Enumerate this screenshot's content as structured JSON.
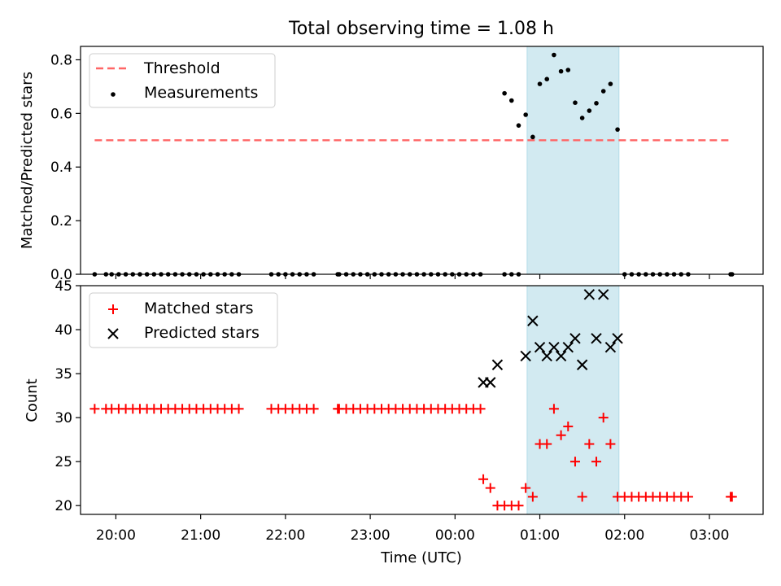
{
  "figure": {
    "title": "Total observing time = 1.08 h"
  },
  "chart_data": [
    {
      "type": "scatter",
      "panel": "top",
      "xlabel": "",
      "ylabel": "Matched/Predicted stars",
      "xlim": [
        "19:35",
        "03:38"
      ],
      "ylim": [
        0,
        0.85
      ],
      "yticks": [
        0.0,
        0.2,
        0.4,
        0.6,
        0.8
      ],
      "ytick_labels": [
        "0.0",
        "0.2",
        "0.4",
        "0.6",
        "0.8"
      ],
      "shaded_interval": {
        "start": "00:51",
        "end": "01:56",
        "color": "#add8e6"
      },
      "legend_position": "upper-left",
      "threshold": {
        "name": "Threshold",
        "value": 0.5,
        "x_start": "19:45",
        "x_end": "03:15",
        "color": "#ff6666",
        "style": "dashed"
      },
      "series": [
        {
          "name": "Measurements",
          "color": "#000000",
          "marker": "dot",
          "points": [
            [
              "19:45",
              0
            ],
            [
              "19:53",
              0
            ],
            [
              "19:57",
              0
            ],
            [
              "20:02",
              0
            ],
            [
              "20:07",
              0
            ],
            [
              "20:12",
              0
            ],
            [
              "20:17",
              0
            ],
            [
              "20:22",
              0
            ],
            [
              "20:27",
              0
            ],
            [
              "20:32",
              0
            ],
            [
              "20:37",
              0
            ],
            [
              "20:42",
              0
            ],
            [
              "20:47",
              0
            ],
            [
              "20:52",
              0
            ],
            [
              "20:57",
              0
            ],
            [
              "21:02",
              0
            ],
            [
              "21:07",
              0
            ],
            [
              "21:12",
              0
            ],
            [
              "21:17",
              0
            ],
            [
              "21:22",
              0
            ],
            [
              "21:27",
              0
            ],
            [
              "21:50",
              0
            ],
            [
              "21:55",
              0
            ],
            [
              "22:00",
              0
            ],
            [
              "22:05",
              0
            ],
            [
              "22:10",
              0
            ],
            [
              "22:15",
              0
            ],
            [
              "22:20",
              0
            ],
            [
              "22:37",
              0
            ],
            [
              "22:38",
              0
            ],
            [
              "22:43",
              0
            ],
            [
              "22:48",
              0
            ],
            [
              "22:53",
              0
            ],
            [
              "22:58",
              0
            ],
            [
              "23:03",
              0
            ],
            [
              "23:08",
              0
            ],
            [
              "23:13",
              0
            ],
            [
              "23:18",
              0
            ],
            [
              "23:23",
              0
            ],
            [
              "23:28",
              0
            ],
            [
              "23:33",
              0
            ],
            [
              "23:38",
              0
            ],
            [
              "23:43",
              0
            ],
            [
              "23:48",
              0
            ],
            [
              "23:53",
              0
            ],
            [
              "23:58",
              0
            ],
            [
              "00:03",
              0
            ],
            [
              "00:08",
              0
            ],
            [
              "00:13",
              0
            ],
            [
              "00:18",
              0
            ],
            [
              "00:35",
              0.675
            ],
            [
              "00:40",
              0.648
            ],
            [
              "00:45",
              0.555
            ],
            [
              "00:35",
              0
            ],
            [
              "00:40",
              0
            ],
            [
              "00:45",
              0
            ],
            [
              "00:50",
              0.595
            ],
            [
              "00:55",
              0.512
            ],
            [
              "01:00",
              0.71
            ],
            [
              "01:05",
              0.728
            ],
            [
              "01:10",
              0.818
            ],
            [
              "01:15",
              0.757
            ],
            [
              "01:20",
              0.762
            ],
            [
              "01:25",
              0.64
            ],
            [
              "01:30",
              0.583
            ],
            [
              "01:35",
              0.61
            ],
            [
              "01:40",
              0.638
            ],
            [
              "01:45",
              0.683
            ],
            [
              "01:50",
              0.71
            ],
            [
              "01:55",
              0.54
            ],
            [
              "02:00",
              0
            ],
            [
              "02:05",
              0
            ],
            [
              "02:10",
              0
            ],
            [
              "02:15",
              0
            ],
            [
              "02:20",
              0
            ],
            [
              "02:25",
              0
            ],
            [
              "02:30",
              0
            ],
            [
              "02:35",
              0
            ],
            [
              "02:40",
              0
            ],
            [
              "02:45",
              0
            ],
            [
              "03:15",
              0
            ],
            [
              "03:16",
              0
            ]
          ]
        }
      ]
    },
    {
      "type": "scatter",
      "panel": "bottom",
      "xlabel": "Time (UTC)",
      "ylabel": "Count",
      "xlim": [
        "19:35",
        "03:38"
      ],
      "ylim": [
        19,
        45
      ],
      "yticks": [
        20,
        25,
        30,
        35,
        40,
        45
      ],
      "ytick_labels": [
        "20",
        "25",
        "30",
        "35",
        "40",
        "45"
      ],
      "xticks": [
        "20:00",
        "21:00",
        "22:00",
        "23:00",
        "00:00",
        "01:00",
        "02:00",
        "03:00"
      ],
      "xtick_labels": [
        "20:00",
        "21:00",
        "22:00",
        "23:00",
        "00:00",
        "01:00",
        "02:00",
        "03:00"
      ],
      "shaded_interval": {
        "start": "00:51",
        "end": "01:56",
        "color": "#add8e6"
      },
      "legend_position": "upper-left",
      "series": [
        {
          "name": "Matched stars",
          "color": "#ff0000",
          "marker": "plus",
          "points": [
            [
              "19:45",
              31
            ],
            [
              "19:53",
              31
            ],
            [
              "19:57",
              31
            ],
            [
              "20:02",
              31
            ],
            [
              "20:07",
              31
            ],
            [
              "20:12",
              31
            ],
            [
              "20:17",
              31
            ],
            [
              "20:22",
              31
            ],
            [
              "20:27",
              31
            ],
            [
              "20:32",
              31
            ],
            [
              "20:37",
              31
            ],
            [
              "20:42",
              31
            ],
            [
              "20:47",
              31
            ],
            [
              "20:52",
              31
            ],
            [
              "20:57",
              31
            ],
            [
              "21:02",
              31
            ],
            [
              "21:07",
              31
            ],
            [
              "21:12",
              31
            ],
            [
              "21:17",
              31
            ],
            [
              "21:22",
              31
            ],
            [
              "21:27",
              31
            ],
            [
              "21:50",
              31
            ],
            [
              "21:55",
              31
            ],
            [
              "22:00",
              31
            ],
            [
              "22:05",
              31
            ],
            [
              "22:10",
              31
            ],
            [
              "22:15",
              31
            ],
            [
              "22:20",
              31
            ],
            [
              "22:37",
              31
            ],
            [
              "22:38",
              31
            ],
            [
              "22:43",
              31
            ],
            [
              "22:48",
              31
            ],
            [
              "22:53",
              31
            ],
            [
              "22:58",
              31
            ],
            [
              "23:03",
              31
            ],
            [
              "23:08",
              31
            ],
            [
              "23:13",
              31
            ],
            [
              "23:18",
              31
            ],
            [
              "23:23",
              31
            ],
            [
              "23:28",
              31
            ],
            [
              "23:33",
              31
            ],
            [
              "23:38",
              31
            ],
            [
              "23:43",
              31
            ],
            [
              "23:48",
              31
            ],
            [
              "23:53",
              31
            ],
            [
              "23:58",
              31
            ],
            [
              "00:03",
              31
            ],
            [
              "00:08",
              31
            ],
            [
              "00:13",
              31
            ],
            [
              "00:18",
              31
            ],
            [
              "00:20",
              23
            ],
            [
              "00:25",
              22
            ],
            [
              "00:30",
              20
            ],
            [
              "00:35",
              20
            ],
            [
              "00:40",
              20
            ],
            [
              "00:45",
              20
            ],
            [
              "00:50",
              22
            ],
            [
              "00:55",
              21
            ],
            [
              "01:00",
              27
            ],
            [
              "01:05",
              27
            ],
            [
              "01:10",
              31
            ],
            [
              "01:15",
              28
            ],
            [
              "01:20",
              29
            ],
            [
              "01:25",
              25
            ],
            [
              "01:30",
              21
            ],
            [
              "01:35",
              27
            ],
            [
              "01:40",
              25
            ],
            [
              "01:45",
              30
            ],
            [
              "01:50",
              27
            ],
            [
              "01:55",
              21
            ],
            [
              "02:00",
              21
            ],
            [
              "02:05",
              21
            ],
            [
              "02:10",
              21
            ],
            [
              "02:15",
              21
            ],
            [
              "02:20",
              21
            ],
            [
              "02:25",
              21
            ],
            [
              "02:30",
              21
            ],
            [
              "02:35",
              21
            ],
            [
              "02:40",
              21
            ],
            [
              "02:45",
              21
            ],
            [
              "03:15",
              21
            ],
            [
              "03:16",
              21
            ]
          ]
        },
        {
          "name": "Predicted stars",
          "color": "#000000",
          "marker": "x",
          "points": [
            [
              "00:20",
              34
            ],
            [
              "00:25",
              34
            ],
            [
              "00:30",
              36
            ],
            [
              "00:50",
              37
            ],
            [
              "00:55",
              41
            ],
            [
              "01:00",
              38
            ],
            [
              "01:05",
              37
            ],
            [
              "01:10",
              38
            ],
            [
              "01:15",
              37
            ],
            [
              "01:20",
              38
            ],
            [
              "01:25",
              39
            ],
            [
              "01:30",
              36
            ],
            [
              "01:35",
              44
            ],
            [
              "01:40",
              39
            ],
            [
              "01:45",
              44
            ],
            [
              "01:50",
              38
            ],
            [
              "01:55",
              39
            ]
          ]
        }
      ]
    }
  ]
}
